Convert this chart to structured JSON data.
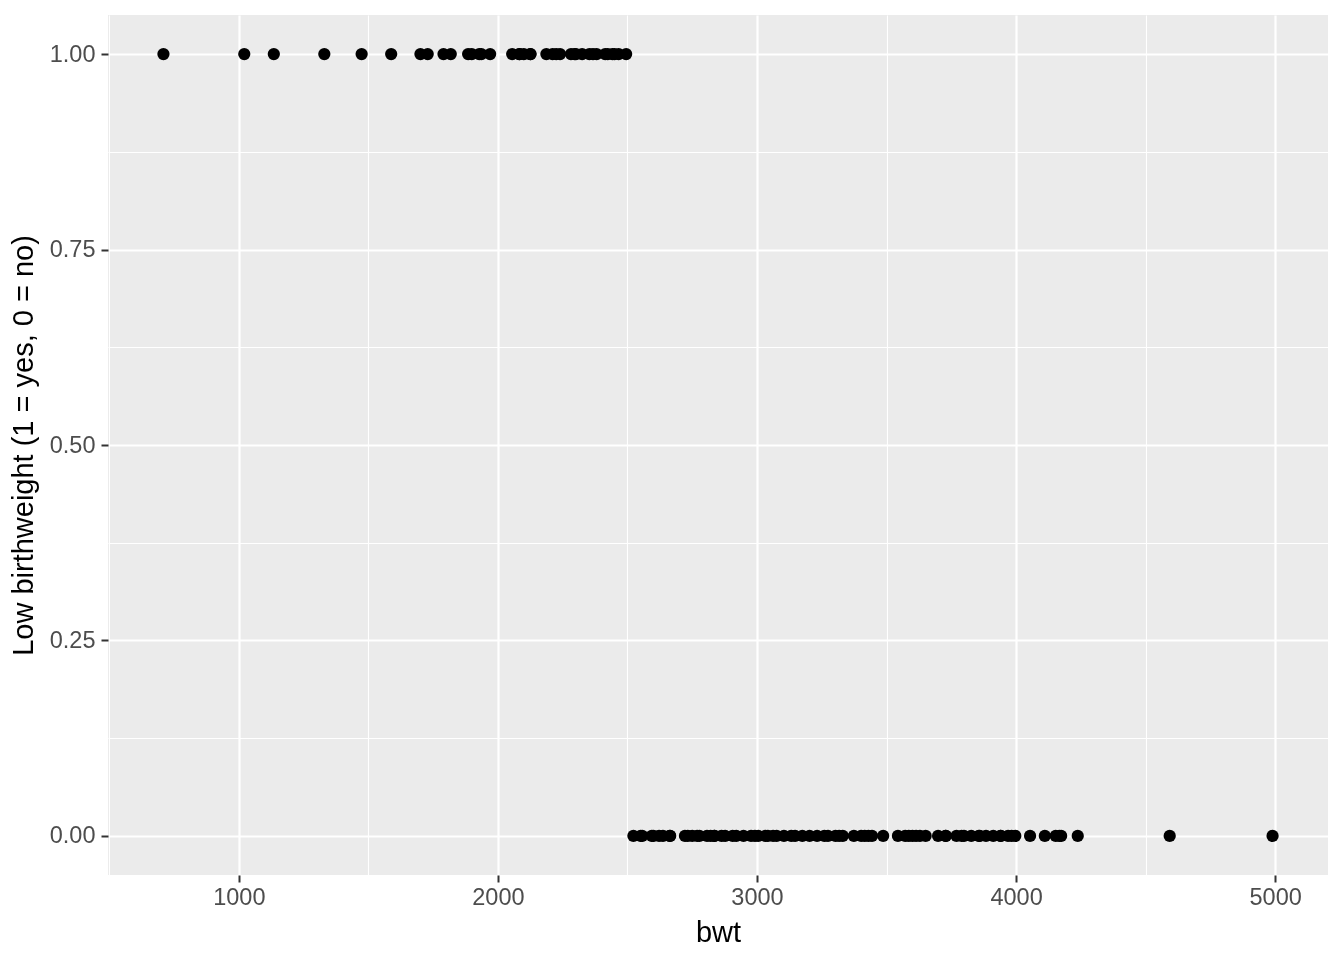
{
  "chart_data": {
    "type": "scatter",
    "xlabel": "bwt",
    "ylabel": "Low birthweight (1 = yes, 0 = no)",
    "series": [
      {
        "color": "#000000",
        "x": [
          709,
          1021,
          1135,
          1330,
          1474,
          1588,
          1701,
          1729,
          1790,
          1818,
          1885,
          1899,
          1928,
          1936,
          1970,
          2055,
          2082,
          2084,
          2100,
          2125,
          2126,
          2187,
          2211,
          2225,
          2240,
          2282,
          2296,
          2301,
          2325,
          2353,
          2367,
          2381,
          2414,
          2424,
          2442,
          2450,
          2466,
          2495,
          2523,
          2551,
          2557,
          2594,
          2600,
          2622,
          2637,
          2663,
          2665,
          2722,
          2733,
          2750,
          2769,
          2778,
          2807,
          2821,
          2835,
          2836,
          2863,
          2877,
          2906,
          2920,
          2948,
          2977,
          2992,
          3005,
          3033,
          3042,
          3062,
          3076,
          3104,
          3132,
          3147,
          3175,
          3203,
          3232,
          3260,
          3274,
          3303,
          3317,
          3331,
          3374,
          3402,
          3416,
          3430,
          3444,
          3487,
          3544,
          3572,
          3586,
          3600,
          3614,
          3629,
          3651,
          3699,
          3728,
          3729,
          3770,
          3790,
          3799,
          3827,
          3856,
          3860,
          3884,
          3912,
          3940,
          3941,
          3969,
          3983,
          3997,
          4054,
          4111,
          4153,
          4167,
          4174,
          4238,
          4593,
          4990
        ],
        "values": [
          1,
          1,
          1,
          1,
          1,
          1,
          1,
          1,
          1,
          1,
          1,
          1,
          1,
          1,
          1,
          1,
          1,
          1,
          1,
          1,
          1,
          1,
          1,
          1,
          1,
          1,
          1,
          1,
          1,
          1,
          1,
          1,
          1,
          1,
          1,
          1,
          1,
          1,
          0,
          0,
          0,
          0,
          0,
          0,
          0,
          0,
          0,
          0,
          0,
          0,
          0,
          0,
          0,
          0,
          0,
          0,
          0,
          0,
          0,
          0,
          0,
          0,
          0,
          0,
          0,
          0,
          0,
          0,
          0,
          0,
          0,
          0,
          0,
          0,
          0,
          0,
          0,
          0,
          0,
          0,
          0,
          0,
          0,
          0,
          0,
          0,
          0,
          0,
          0,
          0,
          0,
          0,
          0,
          0,
          0,
          0,
          0,
          0,
          0,
          0,
          0,
          0,
          0,
          0,
          0,
          0,
          0,
          0,
          0,
          0,
          0,
          0,
          0,
          0,
          0,
          0
        ]
      }
    ],
    "xlim": [
      495,
      5204
    ],
    "xticks": [
      {
        "value": 500,
        "label": null
      },
      1000,
      {
        "value": 1500,
        "label": null
      },
      2000,
      {
        "value": 2500,
        "label": null
      },
      3000,
      {
        "value": 3500,
        "label": null
      },
      4000,
      {
        "value": 4500,
        "label": null
      },
      5000
    ],
    "ylim": [
      -0.05,
      1.05
    ],
    "yticks": [
      {
        "value": 0,
        "label": "0.00"
      },
      {
        "value": 0.125,
        "label": null
      },
      {
        "value": 0.25,
        "label": "0.25"
      },
      {
        "value": 0.375,
        "label": null
      },
      {
        "value": 0.5,
        "label": "0.50"
      },
      {
        "value": 0.625,
        "label": null
      },
      {
        "value": 0.75,
        "label": "0.75"
      },
      {
        "value": 0.875,
        "label": null
      },
      {
        "value": 1,
        "label": "1.00"
      }
    ],
    "grid": true,
    "marker": "circle"
  }
}
